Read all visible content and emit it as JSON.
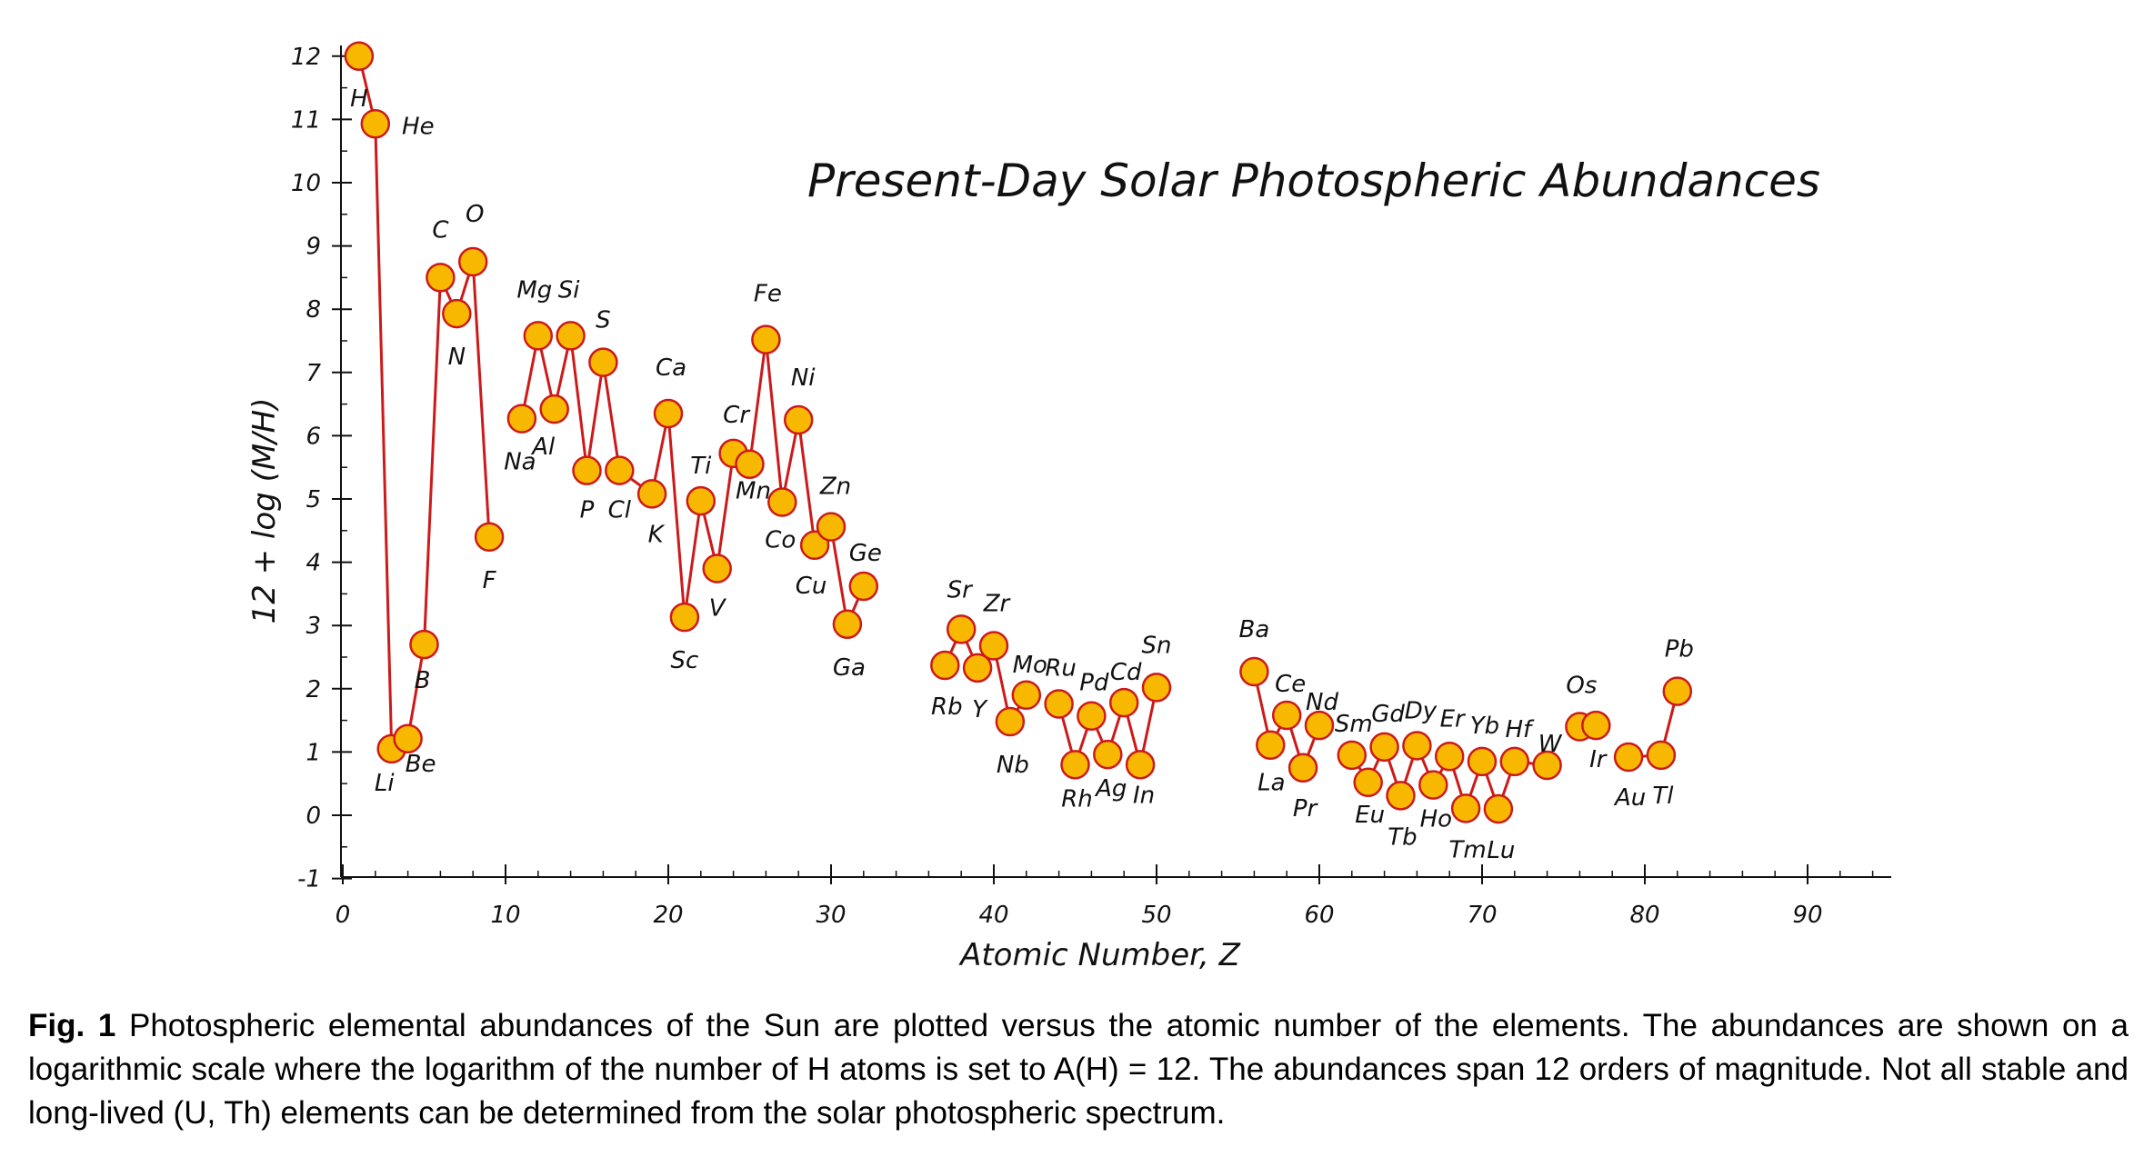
{
  "chart_data": {
    "type": "line",
    "title": "Present-Day Solar Photospheric Abundances",
    "xlabel": "Atomic Number, Z",
    "ylabel": "12 + log (M/H)",
    "xlim": [
      0,
      95
    ],
    "ylim": [
      -1,
      12.3
    ],
    "xticks": [
      0,
      10,
      20,
      30,
      40,
      50,
      60,
      70,
      80,
      90
    ],
    "yticks": [
      -1,
      0,
      1,
      2,
      3,
      4,
      5,
      6,
      7,
      8,
      9,
      10,
      11,
      12
    ],
    "colors": {
      "line": "#cc1a1a",
      "marker_fill": "#f8b800",
      "marker_edge": "#cc1a1a"
    },
    "segments": [
      [
        {
          "z": 1,
          "el": "H",
          "a": 12.0
        },
        {
          "z": 2,
          "el": "He",
          "a": 10.93
        },
        {
          "z": 3,
          "el": "Li",
          "a": 1.05
        },
        {
          "z": 4,
          "el": "Be",
          "a": 1.21
        },
        {
          "z": 5,
          "el": "B",
          "a": 2.7
        },
        {
          "z": 6,
          "el": "C",
          "a": 8.5
        },
        {
          "z": 7,
          "el": "N",
          "a": 7.93
        },
        {
          "z": 8,
          "el": "O",
          "a": 8.75
        },
        {
          "z": 9,
          "el": "F",
          "a": 4.4
        }
      ],
      [
        {
          "z": 11,
          "el": "Na",
          "a": 6.27
        },
        {
          "z": 12,
          "el": "Mg",
          "a": 7.58
        },
        {
          "z": 13,
          "el": "Al",
          "a": 6.42
        },
        {
          "z": 14,
          "el": "Si",
          "a": 7.58
        },
        {
          "z": 15,
          "el": "P",
          "a": 5.45
        },
        {
          "z": 16,
          "el": "S",
          "a": 7.16
        },
        {
          "z": 17,
          "el": "Cl",
          "a": 5.45
        },
        {
          "z": 19,
          "el": "K",
          "a": 5.08
        },
        {
          "z": 20,
          "el": "Ca",
          "a": 6.35
        },
        {
          "z": 21,
          "el": "Sc",
          "a": 3.13
        },
        {
          "z": 22,
          "el": "Ti",
          "a": 4.97
        },
        {
          "z": 23,
          "el": "V",
          "a": 3.9
        },
        {
          "z": 24,
          "el": "Cr",
          "a": 5.72
        },
        {
          "z": 25,
          "el": "Mn",
          "a": 5.55
        },
        {
          "z": 26,
          "el": "Fe",
          "a": 7.52
        },
        {
          "z": 27,
          "el": "Co",
          "a": 4.95
        },
        {
          "z": 28,
          "el": "Ni",
          "a": 6.25
        },
        {
          "z": 29,
          "el": "Cu",
          "a": 4.27
        },
        {
          "z": 30,
          "el": "Zn",
          "a": 4.56
        },
        {
          "z": 31,
          "el": "Ga",
          "a": 3.02
        },
        {
          "z": 32,
          "el": "Ge",
          "a": 3.62
        }
      ],
      [
        {
          "z": 37,
          "el": "Rb",
          "a": 2.37
        },
        {
          "z": 38,
          "el": "Sr",
          "a": 2.94
        },
        {
          "z": 39,
          "el": "Y",
          "a": 2.33
        },
        {
          "z": 40,
          "el": "Zr",
          "a": 2.68
        },
        {
          "z": 41,
          "el": "Nb",
          "a": 1.48
        },
        {
          "z": 42,
          "el": "Mo",
          "a": 1.9
        }
      ],
      [
        {
          "z": 44,
          "el": "Ru",
          "a": 1.76
        },
        {
          "z": 45,
          "el": "Rh",
          "a": 0.8
        },
        {
          "z": 46,
          "el": "Pd",
          "a": 1.57
        },
        {
          "z": 47,
          "el": "Ag",
          "a": 0.96
        },
        {
          "z": 48,
          "el": "Cd",
          "a": 1.78
        },
        {
          "z": 49,
          "el": "In",
          "a": 0.8
        },
        {
          "z": 50,
          "el": "Sn",
          "a": 2.02
        }
      ],
      [
        {
          "z": 56,
          "el": "Ba",
          "a": 2.27
        },
        {
          "z": 57,
          "el": "La",
          "a": 1.11
        },
        {
          "z": 58,
          "el": "Ce",
          "a": 1.58
        },
        {
          "z": 59,
          "el": "Pr",
          "a": 0.75
        },
        {
          "z": 60,
          "el": "Nd",
          "a": 1.42
        }
      ],
      [
        {
          "z": 62,
          "el": "Sm",
          "a": 0.95
        },
        {
          "z": 63,
          "el": "Eu",
          "a": 0.52
        },
        {
          "z": 64,
          "el": "Gd",
          "a": 1.08
        },
        {
          "z": 65,
          "el": "Tb",
          "a": 0.31
        },
        {
          "z": 66,
          "el": "Dy",
          "a": 1.1
        },
        {
          "z": 67,
          "el": "Ho",
          "a": 0.48
        },
        {
          "z": 68,
          "el": "Er",
          "a": 0.93
        },
        {
          "z": 69,
          "el": "Tm",
          "a": 0.11
        },
        {
          "z": 70,
          "el": "Yb",
          "a": 0.85
        },
        {
          "z": 71,
          "el": "Lu",
          "a": 0.1
        },
        {
          "z": 72,
          "el": "Hf",
          "a": 0.85
        },
        {
          "z": 74,
          "el": "W",
          "a": 0.79
        }
      ],
      [
        {
          "z": 76,
          "el": "Os",
          "a": 1.4
        },
        {
          "z": 77,
          "el": "Ir",
          "a": 1.42
        }
      ],
      [
        {
          "z": 79,
          "el": "Au",
          "a": 0.92
        },
        {
          "z": 81,
          "el": "Tl",
          "a": 0.95
        },
        {
          "z": 82,
          "el": "Pb",
          "a": 1.96
        }
      ]
    ]
  },
  "caption": {
    "label": "Fig. 1",
    "text": "Photospheric elemental abundances of the Sun are plotted versus the atomic number of the elements. The abundances are shown on a logarithmic scale where the logarithm of the number of H atoms is set to A(H) = 12. The abundances span 12 orders of magnitude. Not all stable and long-lived (U, Th) elements can be determined from the solar photospheric spectrum."
  }
}
